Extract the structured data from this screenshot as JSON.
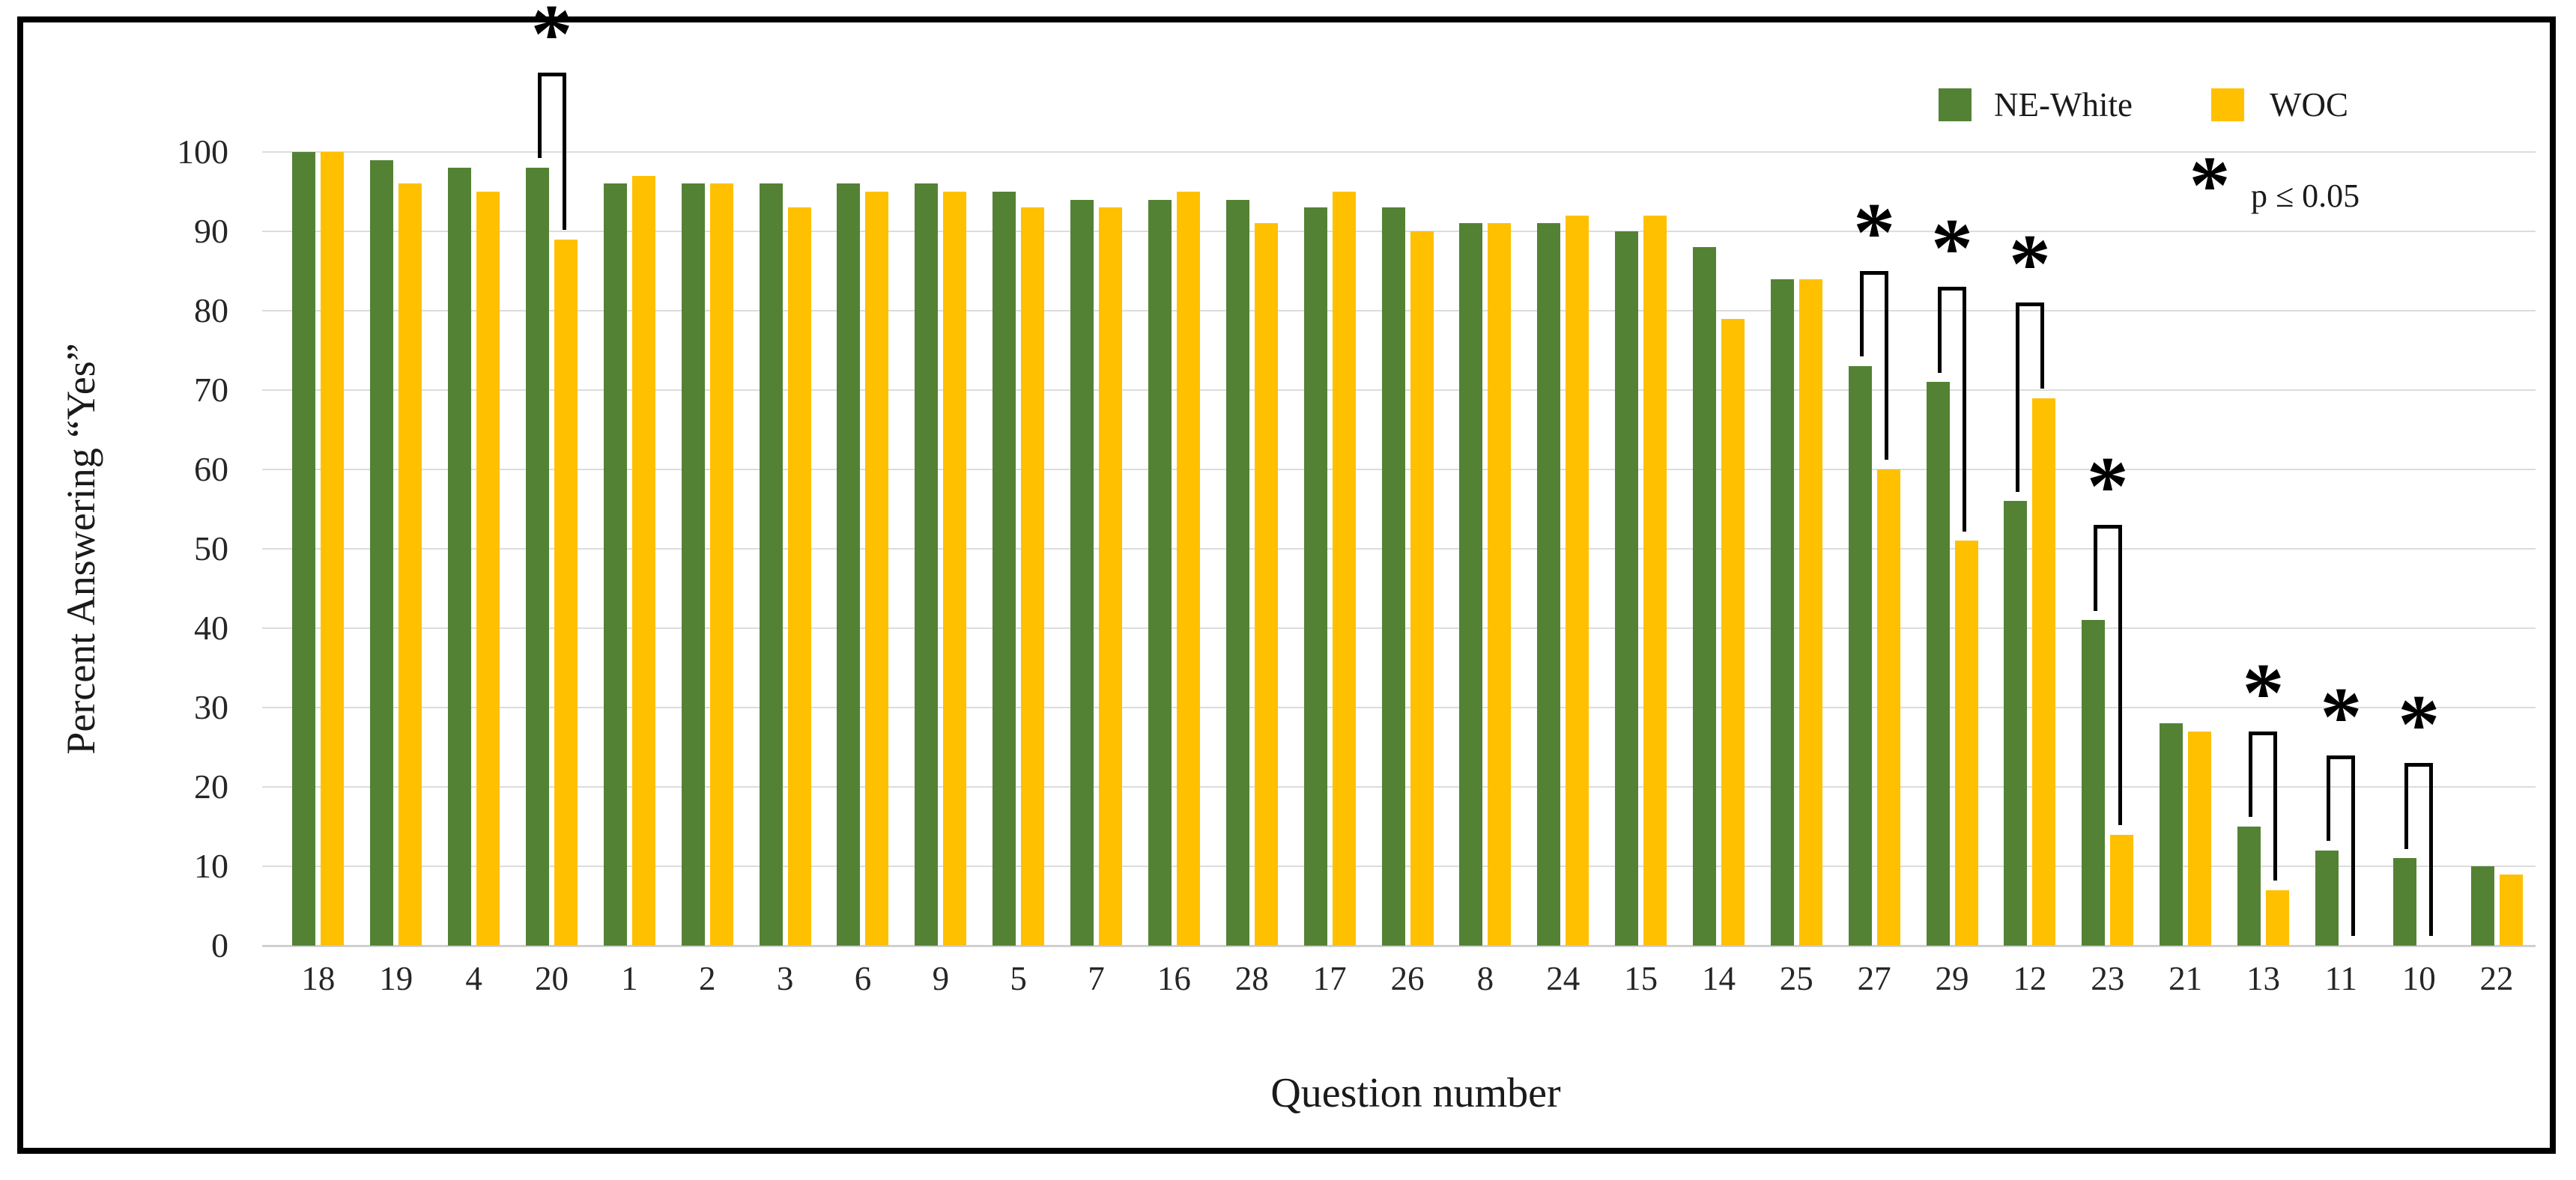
{
  "figure": {
    "background": "#ffffff",
    "border_color": "#000000"
  },
  "legend": {
    "items": [
      {
        "label": "NE-White",
        "color": "#548235"
      },
      {
        "label": "WOC",
        "color": "#FFC000"
      }
    ]
  },
  "annotation": {
    "marker": "*",
    "text": "p ≤ 0.05"
  },
  "chart_data": {
    "type": "bar",
    "title": "",
    "xlabel": "Question number",
    "ylabel": "Percent Answering “Yes”",
    "ylim": [
      0,
      100
    ],
    "yticks": [
      0,
      10,
      20,
      30,
      40,
      50,
      60,
      70,
      80,
      90,
      100
    ],
    "grid": "horizontal",
    "legend_position": "top-right",
    "categories": [
      "18",
      "19",
      "4",
      "20",
      "1",
      "2",
      "3",
      "6",
      "9",
      "5",
      "7",
      "16",
      "28",
      "17",
      "26",
      "8",
      "24",
      "15",
      "14",
      "25",
      "27",
      "29",
      "12",
      "23",
      "21",
      "13",
      "11",
      "10",
      "22"
    ],
    "series": [
      {
        "name": "NE-White",
        "color": "#548235",
        "values": [
          100,
          99,
          98,
          98,
          96,
          96,
          96,
          96,
          96,
          95,
          94,
          94,
          94,
          93,
          93,
          91,
          91,
          90,
          88,
          84,
          73,
          71,
          56,
          41,
          28,
          15,
          12,
          11,
          10
        ]
      },
      {
        "name": "WOC",
        "color": "#FFC000",
        "values": [
          100,
          96,
          95,
          89,
          97,
          96,
          93,
          95,
          95,
          93,
          93,
          95,
          91,
          95,
          90,
          91,
          92,
          92,
          79,
          84,
          60,
          51,
          69,
          14,
          27,
          7,
          0,
          0,
          9
        ]
      }
    ],
    "significant_categories": [
      "20",
      "27",
      "29",
      "12",
      "23",
      "13",
      "11",
      "10"
    ],
    "significance_note": "* p ≤ 0.05"
  }
}
